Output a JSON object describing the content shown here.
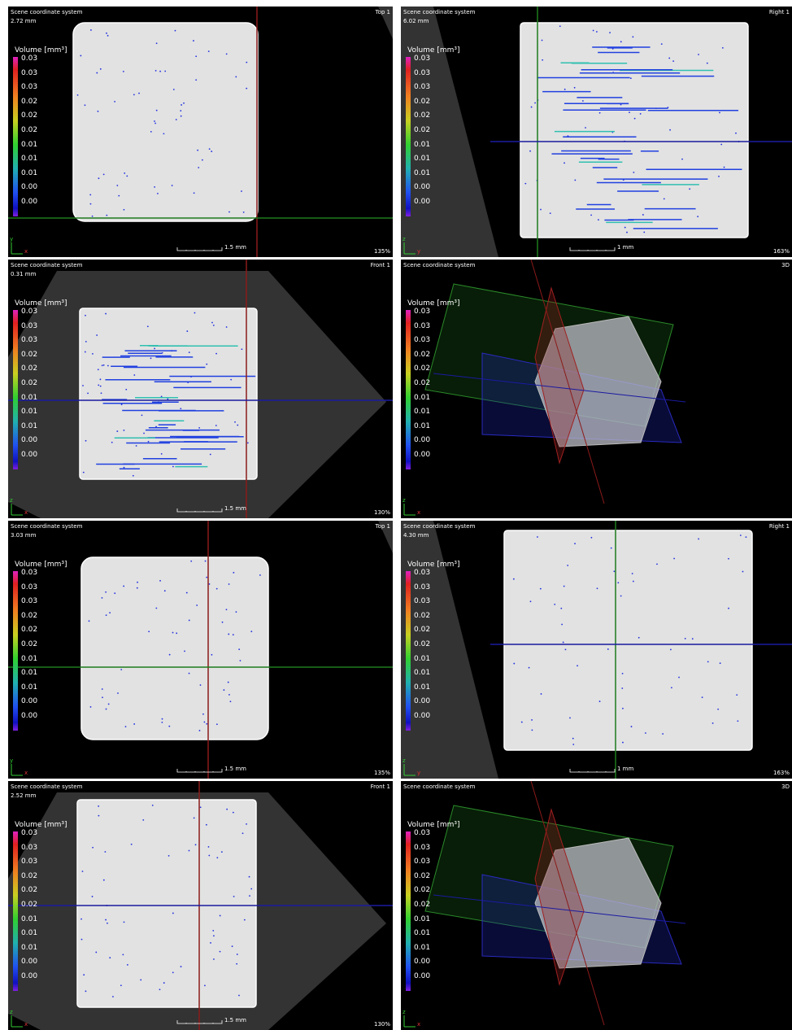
{
  "panels": [
    {
      "title": "Scene coordinate system",
      "depth": "2.72 mm",
      "view": "Top 1",
      "legend": {
        "title": "Volume [mm³]",
        "labels": [
          "0.03",
          "0.03",
          "0.03",
          "0.02",
          "0.02",
          "0.02",
          "0.01",
          "0.01",
          "0.01",
          "0.00",
          "0.00"
        ]
      },
      "scale": "1.5 mm",
      "zoom": "135%",
      "axes": [
        "y",
        "x"
      ]
    },
    {
      "title": "Scene coordinate system",
      "depth": "6.02 mm",
      "view": "Right 1",
      "legend": {
        "title": "Volume [mm³]",
        "labels": [
          "0.03",
          "0.03",
          "0.03",
          "0.02",
          "0.02",
          "0.02",
          "0.01",
          "0.01",
          "0.01",
          "0.00",
          "0.00"
        ]
      },
      "scale": "1 mm",
      "zoom": "163%",
      "axes": [
        "z",
        "y"
      ]
    },
    {
      "title": "Scene coordinate system",
      "depth": "0.31 mm",
      "view": "Front 1",
      "legend": {
        "title": "Volume [mm³]",
        "labels": [
          "0.03",
          "0.03",
          "0.03",
          "0.02",
          "0.02",
          "0.02",
          "0.01",
          "0.01",
          "0.01",
          "0.00",
          "0.00"
        ]
      },
      "scale": "1.5 mm",
      "zoom": "130%",
      "axes": [
        "z",
        "x"
      ]
    },
    {
      "title": "Scene coordinate system",
      "view": "3D",
      "legend": {
        "title": "Volume [mm³]",
        "labels": [
          "0.03",
          "0.03",
          "0.03",
          "0.02",
          "0.02",
          "0.02",
          "0.01",
          "0.01",
          "0.01",
          "0.00",
          "0.00"
        ]
      },
      "axes": [
        "z",
        "x"
      ]
    },
    {
      "title": "Scene coordinate system",
      "depth": "3.03 mm",
      "view": "Top 1",
      "legend": {
        "title": "Volume [mm³]",
        "labels": [
          "0.03",
          "0.03",
          "0.03",
          "0.02",
          "0.02",
          "0.02",
          "0.01",
          "0.01",
          "0.01",
          "0.00",
          "0.00"
        ]
      },
      "scale": "1.5 mm",
      "zoom": "135%",
      "axes": [
        "y",
        "x"
      ]
    },
    {
      "title": "Scene coordinate system",
      "depth": "4.30 mm",
      "view": "Right 1",
      "legend": {
        "title": "Volume [mm³]",
        "labels": [
          "0.03",
          "0.03",
          "0.03",
          "0.02",
          "0.02",
          "0.02",
          "0.01",
          "0.01",
          "0.01",
          "0.00",
          "0.00"
        ]
      },
      "scale": "1 mm",
      "zoom": "163%",
      "axes": [
        "z",
        "y"
      ]
    },
    {
      "title": "Scene coordinate system",
      "depth": "2.52 mm",
      "view": "Front 1",
      "legend": {
        "title": "Volume [mm³]",
        "labels": [
          "0.03",
          "0.03",
          "0.03",
          "0.02",
          "0.02",
          "0.02",
          "0.01",
          "0.01",
          "0.01",
          "0.00",
          "0.00"
        ]
      },
      "scale": "1.5 mm",
      "zoom": "130%",
      "axes": [
        "z",
        "x"
      ]
    },
    {
      "title": "Scene coordinate system",
      "view": "3D",
      "legend": {
        "title": "Volume [mm³]",
        "labels": [
          "0.03",
          "0.03",
          "0.03",
          "0.02",
          "0.02",
          "0.02",
          "0.01",
          "0.01",
          "0.01",
          "0.00",
          "0.00"
        ]
      },
      "axes": [
        "z",
        "x"
      ]
    }
  ]
}
